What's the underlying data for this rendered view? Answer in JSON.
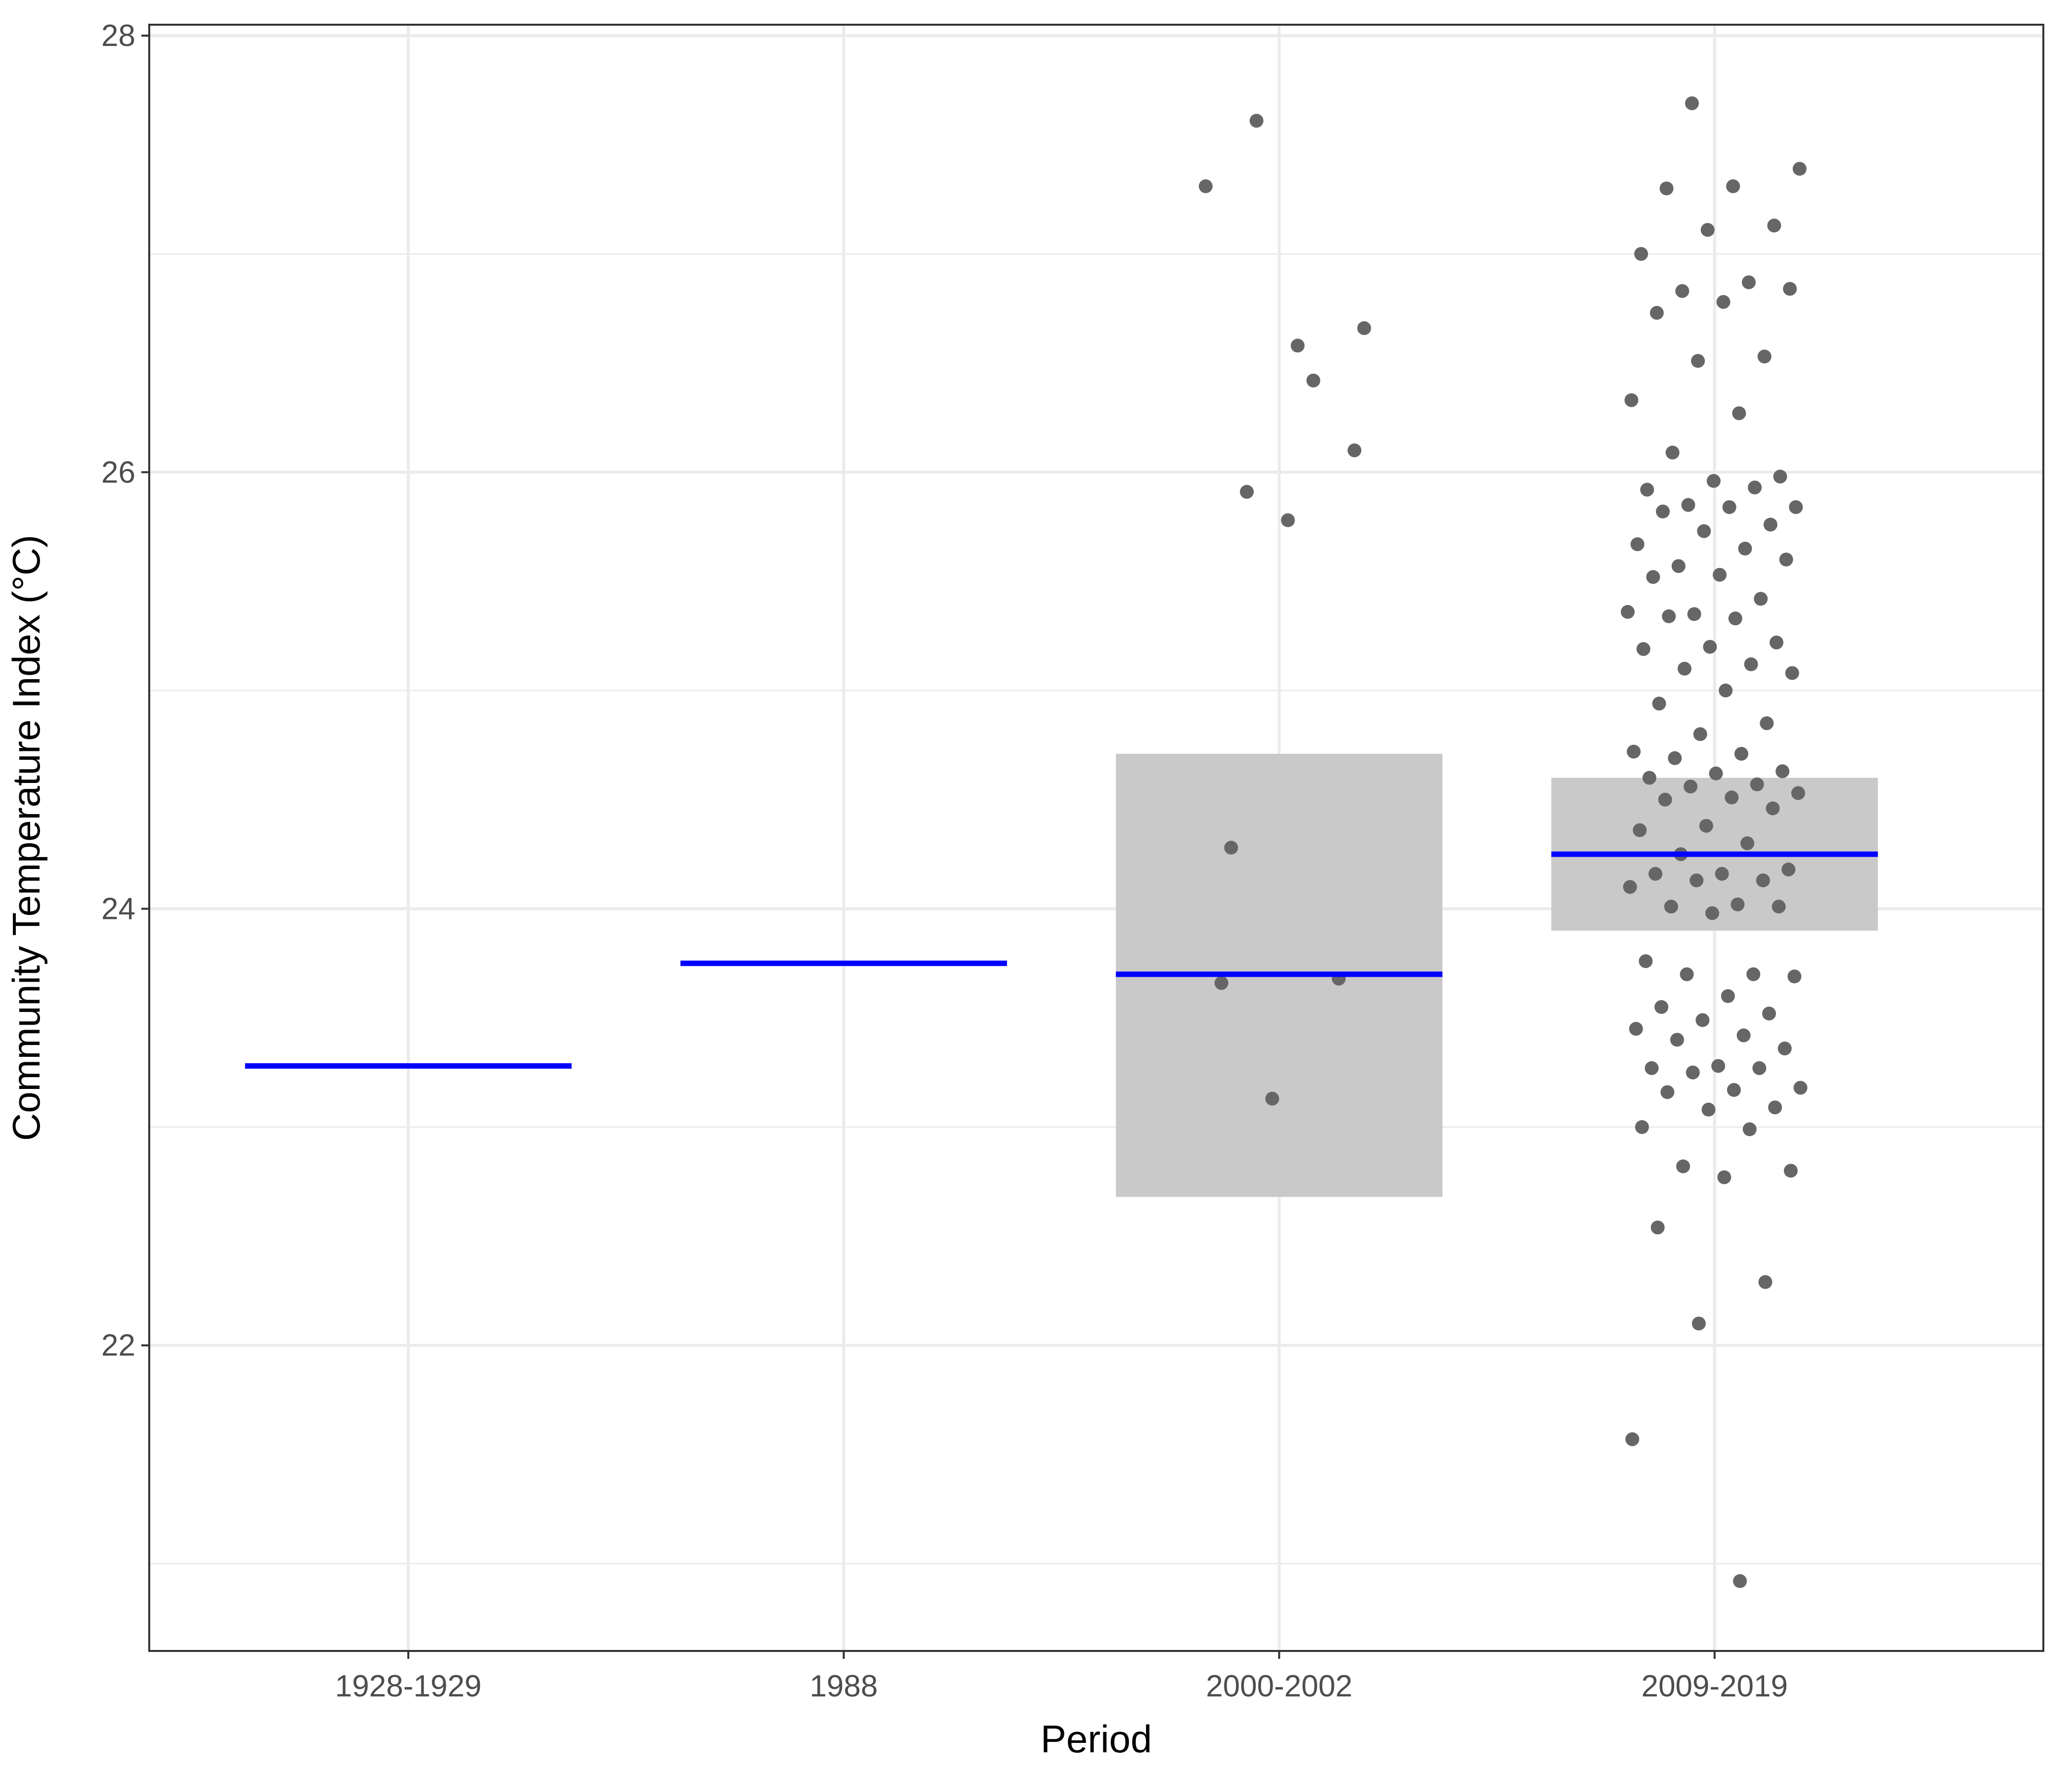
{
  "chart_data": {
    "type": "scatter",
    "xlabel": "Period",
    "ylabel": "Community Temperature Index (°C)",
    "categories": [
      "1928-1929",
      "1988",
      "2000-2002",
      "2009-2019"
    ],
    "ylim": [
      20.6,
      28.05
    ],
    "yticks": [
      22,
      24,
      26,
      28
    ],
    "grid": true,
    "colors": {
      "mean": "#0000ff",
      "ci": "#c9c9c9",
      "points": "#666666",
      "grid": "#ebebeb",
      "frame": "#333333"
    },
    "summary": [
      {
        "category": "1928-1929",
        "mean": 23.28,
        "ci_low": null,
        "ci_high": null
      },
      {
        "category": "1988",
        "mean": 23.75,
        "ci_low": null,
        "ci_high": null
      },
      {
        "category": "2000-2002",
        "mean": 23.7,
        "ci_low": 22.68,
        "ci_high": 24.71
      },
      {
        "category": "2009-2019",
        "mean": 24.25,
        "ci_low": 23.9,
        "ci_high": 24.6
      }
    ],
    "points": [
      {
        "category": "2000-2002",
        "values": [
          27.61,
          26.66,
          26.58,
          24.28,
          23.68,
          23.13,
          27.31,
          26.42,
          25.91,
          26.1,
          25.78,
          23.66
        ]
      },
      {
        "category": "2009-2019",
        "values": [
          27.69,
          27.39,
          27.31,
          27.3,
          27.13,
          27.11,
          27.0,
          26.87,
          26.83,
          26.84,
          26.78,
          26.73,
          26.53,
          26.51,
          26.33,
          26.27,
          26.09,
          25.98,
          25.96,
          25.92,
          25.93,
          25.85,
          25.84,
          25.84,
          25.82,
          25.76,
          25.73,
          25.67,
          25.65,
          25.57,
          25.6,
          25.53,
          25.52,
          25.42,
          25.35,
          25.36,
          25.33,
          25.34,
          25.22,
          25.2,
          25.19,
          25.12,
          25.1,
          25.08,
          25.0,
          24.94,
          24.85,
          24.8,
          24.72,
          24.71,
          24.69,
          24.63,
          24.62,
          24.6,
          24.57,
          24.56,
          24.53,
          24.51,
          24.5,
          24.46,
          24.38,
          24.36,
          24.3,
          24.25,
          24.18,
          24.16,
          24.16,
          24.13,
          24.13,
          24.1,
          24.02,
          24.01,
          24.01,
          23.98,
          23.76,
          23.7,
          23.7,
          23.69,
          23.6,
          23.55,
          23.52,
          23.49,
          23.45,
          23.42,
          23.4,
          23.36,
          23.28,
          23.27,
          23.27,
          23.25,
          23.18,
          23.17,
          23.16,
          23.09,
          23.08,
          23.0,
          22.99,
          22.82,
          22.8,
          22.77,
          22.54,
          22.29,
          22.1,
          21.57,
          20.92
        ]
      }
    ]
  }
}
